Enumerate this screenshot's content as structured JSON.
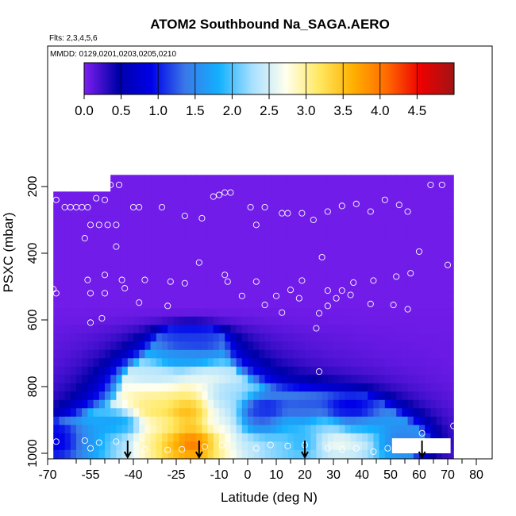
{
  "chart_data": {
    "type": "heatmap",
    "title": "ATOM2 Southbound Na_SAGA.AERO",
    "subtitle_flights": "Flts: 2,3,4,5,6",
    "subtitle_dates": "MMDD: 0129,0201,0203,0205,0210",
    "xlabel": "Latitude (deg N)",
    "ylabel": "PSXC (mbar)",
    "xlim": [
      -70,
      80
    ],
    "ylim": [
      1000,
      100
    ],
    "x_ticks": [
      "-70",
      "-55",
      "-40",
      "-25",
      "-10",
      "0",
      "10",
      "20",
      "30",
      "40",
      "50",
      "60",
      "70",
      "80"
    ],
    "x_tick_values": [
      -70,
      -55,
      -40,
      -25,
      -10,
      0,
      10,
      20,
      30,
      40,
      50,
      60,
      70,
      80
    ],
    "x_minor_ticks": [
      -60,
      -50,
      -45,
      -35,
      -30,
      -20,
      -15,
      -5,
      5,
      15,
      25,
      35,
      45,
      55,
      65,
      75
    ],
    "y_ticks": [
      "200",
      "400",
      "600",
      "800",
      "1000"
    ],
    "y_tick_values": [
      200,
      400,
      600,
      800,
      1000
    ],
    "colorbar": {
      "ticks": [
        "0.0",
        "0.5",
        "1.0",
        "1.5",
        "2.0",
        "2.5",
        "3.0",
        "3.5",
        "4.0",
        "4.5"
      ],
      "tick_values": [
        0,
        0.5,
        1.0,
        1.5,
        2.0,
        2.5,
        3.0,
        3.5,
        4.0,
        4.5
      ],
      "range": [
        0,
        5
      ],
      "colors": [
        "#7f1ff0",
        "#0000a8",
        "#0000e8",
        "#3a78e8",
        "#13b0ff",
        "#a8e0ff",
        "#ffffee",
        "#ffe860",
        "#ffb000",
        "#ff6a00",
        "#ee0000",
        "#a01414"
      ]
    },
    "flight_arrows_lat": [
      -42,
      -17,
      20,
      61
    ],
    "data_extent": {
      "lat_min": -68,
      "lat_max": 71,
      "p_top": 165,
      "p_bottom": 1000
    },
    "concentration_field": [
      {
        "lat": -65,
        "p": 960,
        "value": 0.8
      },
      {
        "lat": -55,
        "p": 960,
        "value": 1.6
      },
      {
        "lat": -45,
        "p": 960,
        "value": 2.2
      },
      {
        "lat": -35,
        "p": 960,
        "value": 3.0
      },
      {
        "lat": -25,
        "p": 960,
        "value": 3.6
      },
      {
        "lat": -18,
        "p": 960,
        "value": 4.5
      },
      {
        "lat": -10,
        "p": 960,
        "value": 2.8
      },
      {
        "lat": 0,
        "p": 960,
        "value": 2.4
      },
      {
        "lat": 10,
        "p": 960,
        "value": 2.2
      },
      {
        "lat": 20,
        "p": 960,
        "value": 1.8
      },
      {
        "lat": 30,
        "p": 960,
        "value": 2.8
      },
      {
        "lat": 40,
        "p": 960,
        "value": 2.6
      },
      {
        "lat": 50,
        "p": 960,
        "value": 1.4
      },
      {
        "lat": -45,
        "p": 920,
        "value": 1.6
      },
      {
        "lat": -30,
        "p": 920,
        "value": 2.8
      },
      {
        "lat": -22,
        "p": 920,
        "value": 3.4
      },
      {
        "lat": -10,
        "p": 920,
        "value": 2.6
      },
      {
        "lat": 5,
        "p": 920,
        "value": 1.2
      },
      {
        "lat": 15,
        "p": 920,
        "value": 1.9
      },
      {
        "lat": 27,
        "p": 920,
        "value": 2.2
      },
      {
        "lat": 40,
        "p": 920,
        "value": 1.6
      },
      {
        "lat": -30,
        "p": 875,
        "value": 3.2
      },
      {
        "lat": -20,
        "p": 875,
        "value": 3.9
      },
      {
        "lat": -10,
        "p": 875,
        "value": 2.4
      },
      {
        "lat": 5,
        "p": 875,
        "value": 0.9
      },
      {
        "lat": 20,
        "p": 875,
        "value": 1.2
      },
      {
        "lat": 35,
        "p": 875,
        "value": 0.8
      },
      {
        "lat": -30,
        "p": 830,
        "value": 3.0
      },
      {
        "lat": -20,
        "p": 830,
        "value": 3.2
      },
      {
        "lat": -10,
        "p": 830,
        "value": 2.2
      },
      {
        "lat": -30,
        "p": 775,
        "value": 2.4
      },
      {
        "lat": -18,
        "p": 775,
        "value": 2.6
      },
      {
        "lat": -22,
        "p": 720,
        "value": 1.6
      },
      {
        "lat": -20,
        "p": 665,
        "value": 1.1
      },
      {
        "lat": 0,
        "p": 400,
        "value": 0.1
      }
    ],
    "sample_points": [
      {
        "lat": -67,
        "p": 240
      },
      {
        "lat": -64,
        "p": 262
      },
      {
        "lat": -62,
        "p": 262
      },
      {
        "lat": -60,
        "p": 262
      },
      {
        "lat": -58,
        "p": 262
      },
      {
        "lat": -56,
        "p": 262
      },
      {
        "lat": -53,
        "p": 235
      },
      {
        "lat": -51,
        "p": 195
      },
      {
        "lat": -48,
        "p": 195
      },
      {
        "lat": -45,
        "p": 195
      },
      {
        "lat": -50,
        "p": 240
      },
      {
        "lat": -40,
        "p": 262
      },
      {
        "lat": -38,
        "p": 262
      },
      {
        "lat": -30,
        "p": 262
      },
      {
        "lat": -22,
        "p": 288
      },
      {
        "lat": -16,
        "p": 295
      },
      {
        "lat": -12,
        "p": 230
      },
      {
        "lat": -10,
        "p": 225
      },
      {
        "lat": -8,
        "p": 218
      },
      {
        "lat": -6,
        "p": 218
      },
      {
        "lat": 1,
        "p": 262
      },
      {
        "lat": 6,
        "p": 262
      },
      {
        "lat": 12,
        "p": 280
      },
      {
        "lat": 14,
        "p": 280
      },
      {
        "lat": 19,
        "p": 280
      },
      {
        "lat": 23,
        "p": 300
      },
      {
        "lat": 28,
        "p": 275
      },
      {
        "lat": 33,
        "p": 258
      },
      {
        "lat": 38,
        "p": 252
      },
      {
        "lat": 43,
        "p": 275
      },
      {
        "lat": 48,
        "p": 240
      },
      {
        "lat": 53,
        "p": 255
      },
      {
        "lat": 56,
        "p": 275
      },
      {
        "lat": 64,
        "p": 195
      },
      {
        "lat": 68,
        "p": 195
      },
      {
        "lat": -55,
        "p": 315
      },
      {
        "lat": -52,
        "p": 315
      },
      {
        "lat": -49,
        "p": 315
      },
      {
        "lat": -46,
        "p": 315
      },
      {
        "lat": 3,
        "p": 315
      },
      {
        "lat": -57,
        "p": 355
      },
      {
        "lat": -46,
        "p": 380
      },
      {
        "lat": 60,
        "p": 395
      },
      {
        "lat": 26,
        "p": 412
      },
      {
        "lat": -17,
        "p": 428
      },
      {
        "lat": 70,
        "p": 435
      },
      {
        "lat": -50,
        "p": 465
      },
      {
        "lat": -8,
        "p": 465
      },
      {
        "lat": -56,
        "p": 480
      },
      {
        "lat": -44,
        "p": 480
      },
      {
        "lat": -36,
        "p": 480
      },
      {
        "lat": -27,
        "p": 485
      },
      {
        "lat": -22,
        "p": 490
      },
      {
        "lat": -7,
        "p": 485
      },
      {
        "lat": 3,
        "p": 485
      },
      {
        "lat": 19,
        "p": 482
      },
      {
        "lat": 37,
        "p": 488
      },
      {
        "lat": 44,
        "p": 482
      },
      {
        "lat": 52,
        "p": 470
      },
      {
        "lat": 57,
        "p": 460
      },
      {
        "lat": -68,
        "p": 508
      },
      {
        "lat": -67,
        "p": 520
      },
      {
        "lat": -55,
        "p": 520
      },
      {
        "lat": -50,
        "p": 520
      },
      {
        "lat": -43,
        "p": 505
      },
      {
        "lat": 15,
        "p": 510
      },
      {
        "lat": 28,
        "p": 512
      },
      {
        "lat": 33,
        "p": 512
      },
      {
        "lat": 36,
        "p": 525
      },
      {
        "lat": 31,
        "p": 535
      },
      {
        "lat": -38,
        "p": 548
      },
      {
        "lat": -28,
        "p": 558
      },
      {
        "lat": -2,
        "p": 528
      },
      {
        "lat": 10,
        "p": 528
      },
      {
        "lat": 18,
        "p": 535
      },
      {
        "lat": 43,
        "p": 552
      },
      {
        "lat": 51,
        "p": 555
      },
      {
        "lat": 56,
        "p": 568
      },
      {
        "lat": 28,
        "p": 558
      },
      {
        "lat": 6,
        "p": 555
      },
      {
        "lat": 12,
        "p": 578
      },
      {
        "lat": 25,
        "p": 580
      },
      {
        "lat": -51,
        "p": 595
      },
      {
        "lat": -55,
        "p": 608
      },
      {
        "lat": 24,
        "p": 625
      },
      {
        "lat": 25,
        "p": 755
      },
      {
        "lat": 61,
        "p": 940
      },
      {
        "lat": 72,
        "p": 918
      },
      {
        "lat": -67,
        "p": 965
      },
      {
        "lat": -57,
        "p": 962
      },
      {
        "lat": -52,
        "p": 968
      },
      {
        "lat": -46,
        "p": 965
      },
      {
        "lat": -55,
        "p": 985
      },
      {
        "lat": -36,
        "p": 988
      },
      {
        "lat": -28,
        "p": 990
      },
      {
        "lat": -23,
        "p": 988
      },
      {
        "lat": -15,
        "p": 980
      },
      {
        "lat": -9,
        "p": 975
      },
      {
        "lat": 3,
        "p": 985
      },
      {
        "lat": 8,
        "p": 975
      },
      {
        "lat": 14,
        "p": 978
      },
      {
        "lat": 20,
        "p": 975
      },
      {
        "lat": 28,
        "p": 985
      },
      {
        "lat": 33,
        "p": 988
      },
      {
        "lat": 38,
        "p": 985
      },
      {
        "lat": 44,
        "p": 995
      },
      {
        "lat": 49,
        "p": 985
      }
    ]
  }
}
